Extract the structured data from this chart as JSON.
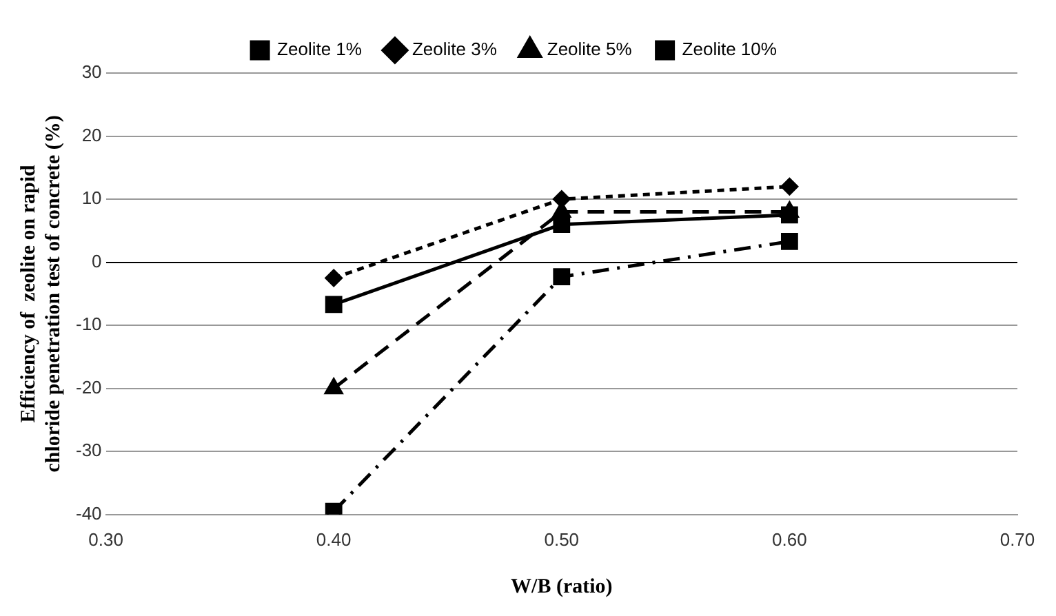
{
  "chart_data": {
    "type": "line",
    "xlabel": "W/B (ratio)",
    "ylabel": "Efficiency of  zeolite on rapid chloride penetration test of concrete (%)",
    "x": [
      0.4,
      0.5,
      0.6
    ],
    "series": [
      {
        "name": "Zeolite 1%",
        "color": "#000000",
        "values": [
          -6.7,
          6,
          7.5
        ],
        "marker": "square",
        "line_style": "solid"
      },
      {
        "name": "Zeolite 3%",
        "color": "#000000",
        "values": [
          -2.5,
          10,
          12
        ],
        "marker": "diamond",
        "line_style": "dotted"
      },
      {
        "name": "Zeolite 5%",
        "color": "#000000",
        "values": [
          -20,
          8,
          8
        ],
        "marker": "triangle",
        "line_style": "dashed"
      },
      {
        "name": "Zeolite 10%",
        "color": "#000000",
        "values": [
          -39.5,
          -2.3,
          3.3
        ],
        "marker": "square",
        "line_style": "dashdot"
      }
    ],
    "xlim": [
      0.3,
      0.7
    ],
    "xticks": [
      {
        "value": 0.3,
        "label": "0.30"
      },
      {
        "value": 0.4,
        "label": "0.40"
      },
      {
        "value": 0.5,
        "label": "0.50"
      },
      {
        "value": 0.6,
        "label": "0.60"
      },
      {
        "value": 0.7,
        "label": "0.70"
      }
    ],
    "ylim": [
      -40,
      30
    ],
    "yticks": [
      -40,
      -30,
      -20,
      -10,
      0,
      10,
      20,
      30
    ],
    "grid": "y",
    "legend": "top"
  }
}
